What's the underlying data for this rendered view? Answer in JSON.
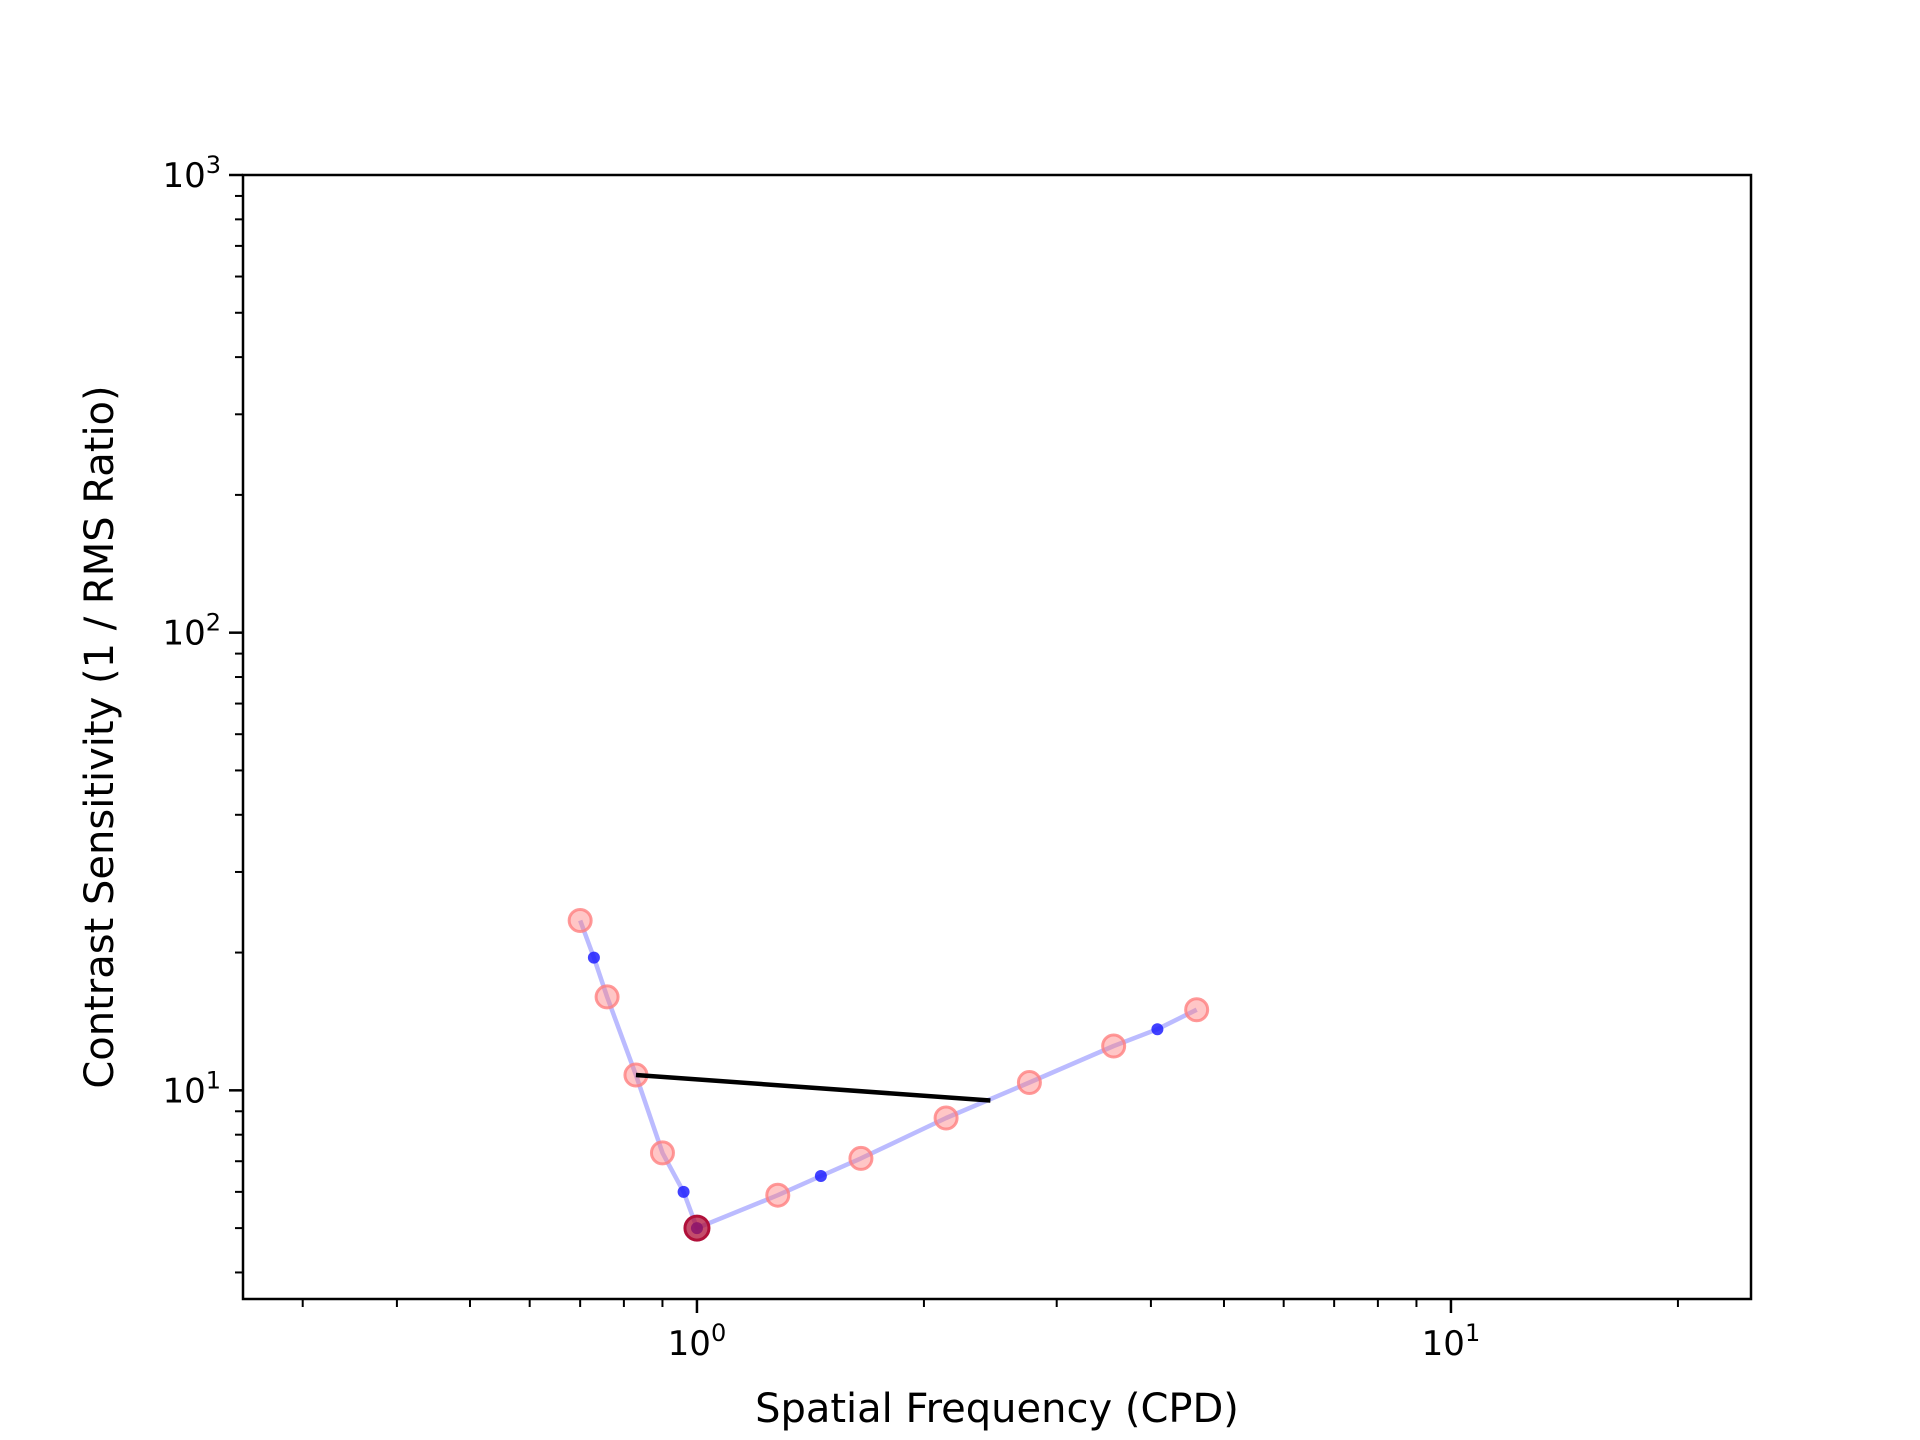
{
  "chart_data": {
    "type": "scatter",
    "title": "",
    "xlabel": "Spatial Frequency (CPD)",
    "ylabel": "Contrast Sensitivity (1 / RMS Ratio)",
    "xscale": "log",
    "yscale": "log",
    "xlim": [
      0.25,
      25
    ],
    "ylim": [
      3.5,
      1000
    ],
    "xticks": [
      {
        "value": 1,
        "label": "10",
        "exp": "0"
      },
      {
        "value": 10,
        "label": "10",
        "exp": "1"
      }
    ],
    "yticks": [
      {
        "value": 10,
        "label": "10",
        "exp": "1"
      },
      {
        "value": 100,
        "label": "10",
        "exp": "2"
      },
      {
        "value": 1000,
        "label": "10",
        "exp": "3"
      }
    ],
    "grid": false,
    "legend": "none",
    "colors": {
      "line": "#3b3bff",
      "small_points": "#2020ff",
      "large_points": "#ff8080",
      "highlight": "#b0103a",
      "segment": "#000000"
    },
    "series": [
      {
        "kind": "line",
        "points": [
          {
            "x": 0.7,
            "y": 23.5
          },
          {
            "x": 0.73,
            "y": 19.5
          },
          {
            "x": 0.76,
            "y": 16.0
          },
          {
            "x": 0.83,
            "y": 10.8
          },
          {
            "x": 0.9,
            "y": 7.3
          },
          {
            "x": 0.96,
            "y": 6.0
          },
          {
            "x": 1.0,
            "y": 5.0
          },
          {
            "x": 1.28,
            "y": 5.9
          },
          {
            "x": 1.46,
            "y": 6.5
          },
          {
            "x": 1.65,
            "y": 7.1
          },
          {
            "x": 2.14,
            "y": 8.7
          },
          {
            "x": 2.76,
            "y": 10.4
          },
          {
            "x": 3.57,
            "y": 12.5
          },
          {
            "x": 4.08,
            "y": 13.6
          },
          {
            "x": 4.6,
            "y": 15.0
          }
        ]
      },
      {
        "kind": "small_points",
        "points": [
          {
            "x": 0.73,
            "y": 19.5
          },
          {
            "x": 0.96,
            "y": 6.0
          },
          {
            "x": 1.0,
            "y": 5.0
          },
          {
            "x": 1.46,
            "y": 6.5
          },
          {
            "x": 4.08,
            "y": 13.6
          }
        ]
      },
      {
        "kind": "large_points",
        "points": [
          {
            "x": 0.7,
            "y": 23.5
          },
          {
            "x": 0.76,
            "y": 16.0
          },
          {
            "x": 0.83,
            "y": 10.8
          },
          {
            "x": 0.9,
            "y": 7.3
          },
          {
            "x": 1.28,
            "y": 5.9
          },
          {
            "x": 1.65,
            "y": 7.1
          },
          {
            "x": 2.14,
            "y": 8.7
          },
          {
            "x": 2.76,
            "y": 10.4
          },
          {
            "x": 3.57,
            "y": 12.5
          },
          {
            "x": 4.6,
            "y": 15.0
          }
        ]
      },
      {
        "kind": "highlight_point",
        "points": [
          {
            "x": 1.0,
            "y": 5.0
          }
        ]
      },
      {
        "kind": "segment",
        "points": [
          {
            "x": 0.83,
            "y": 10.8
          },
          {
            "x": 2.45,
            "y": 9.5
          }
        ]
      }
    ]
  }
}
